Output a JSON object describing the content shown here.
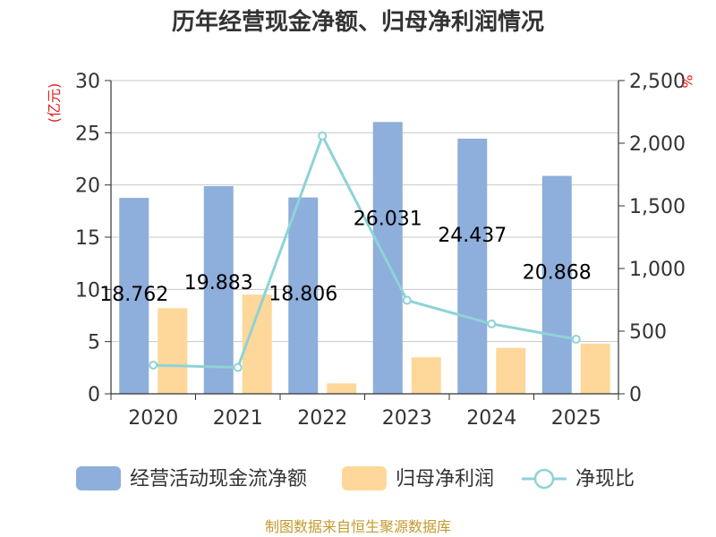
{
  "colors": {
    "bar1": "#8eaedb",
    "bar2": "#fdd89a",
    "line": "#8ed3d6",
    "unit": "#e0201b",
    "source": "#c49a2c"
  },
  "chart_data": {
    "type": "bar",
    "title": "历年经营现金净额、归母净利润情况",
    "categories": [
      "2020",
      "2021",
      "2022",
      "2023",
      "2024",
      "2025"
    ],
    "series": [
      {
        "name": "经营活动现金流净额",
        "type": "bar",
        "axis": "left",
        "values": [
          18.762,
          19.883,
          18.806,
          26.031,
          24.437,
          20.868
        ],
        "labels": [
          "18.762",
          "19.883",
          "18.806",
          "26.031",
          "24.437",
          "20.868"
        ]
      },
      {
        "name": "归母净利润",
        "type": "bar",
        "axis": "left",
        "values": [
          8.2,
          9.5,
          1.0,
          3.5,
          4.4,
          4.8
        ]
      },
      {
        "name": "净现比",
        "type": "line",
        "axis": "right",
        "values": [
          229,
          210,
          2058,
          746,
          558,
          436
        ]
      }
    ],
    "y_left": {
      "unit": "(亿元)",
      "min": 0,
      "max": 30,
      "ticks": [
        "0",
        "5",
        "10",
        "15",
        "20",
        "25",
        "30"
      ]
    },
    "y_right": {
      "unit": "%",
      "min": 0,
      "max": 2500,
      "ticks": [
        "0",
        "500",
        "1,000",
        "1,500",
        "2,000",
        "2,500"
      ]
    },
    "legend": [
      "经营活动现金流净额",
      "归母净利润",
      "净现比"
    ],
    "legend_position": "bottom",
    "source": "制图数据来自恒生聚源数据库"
  }
}
